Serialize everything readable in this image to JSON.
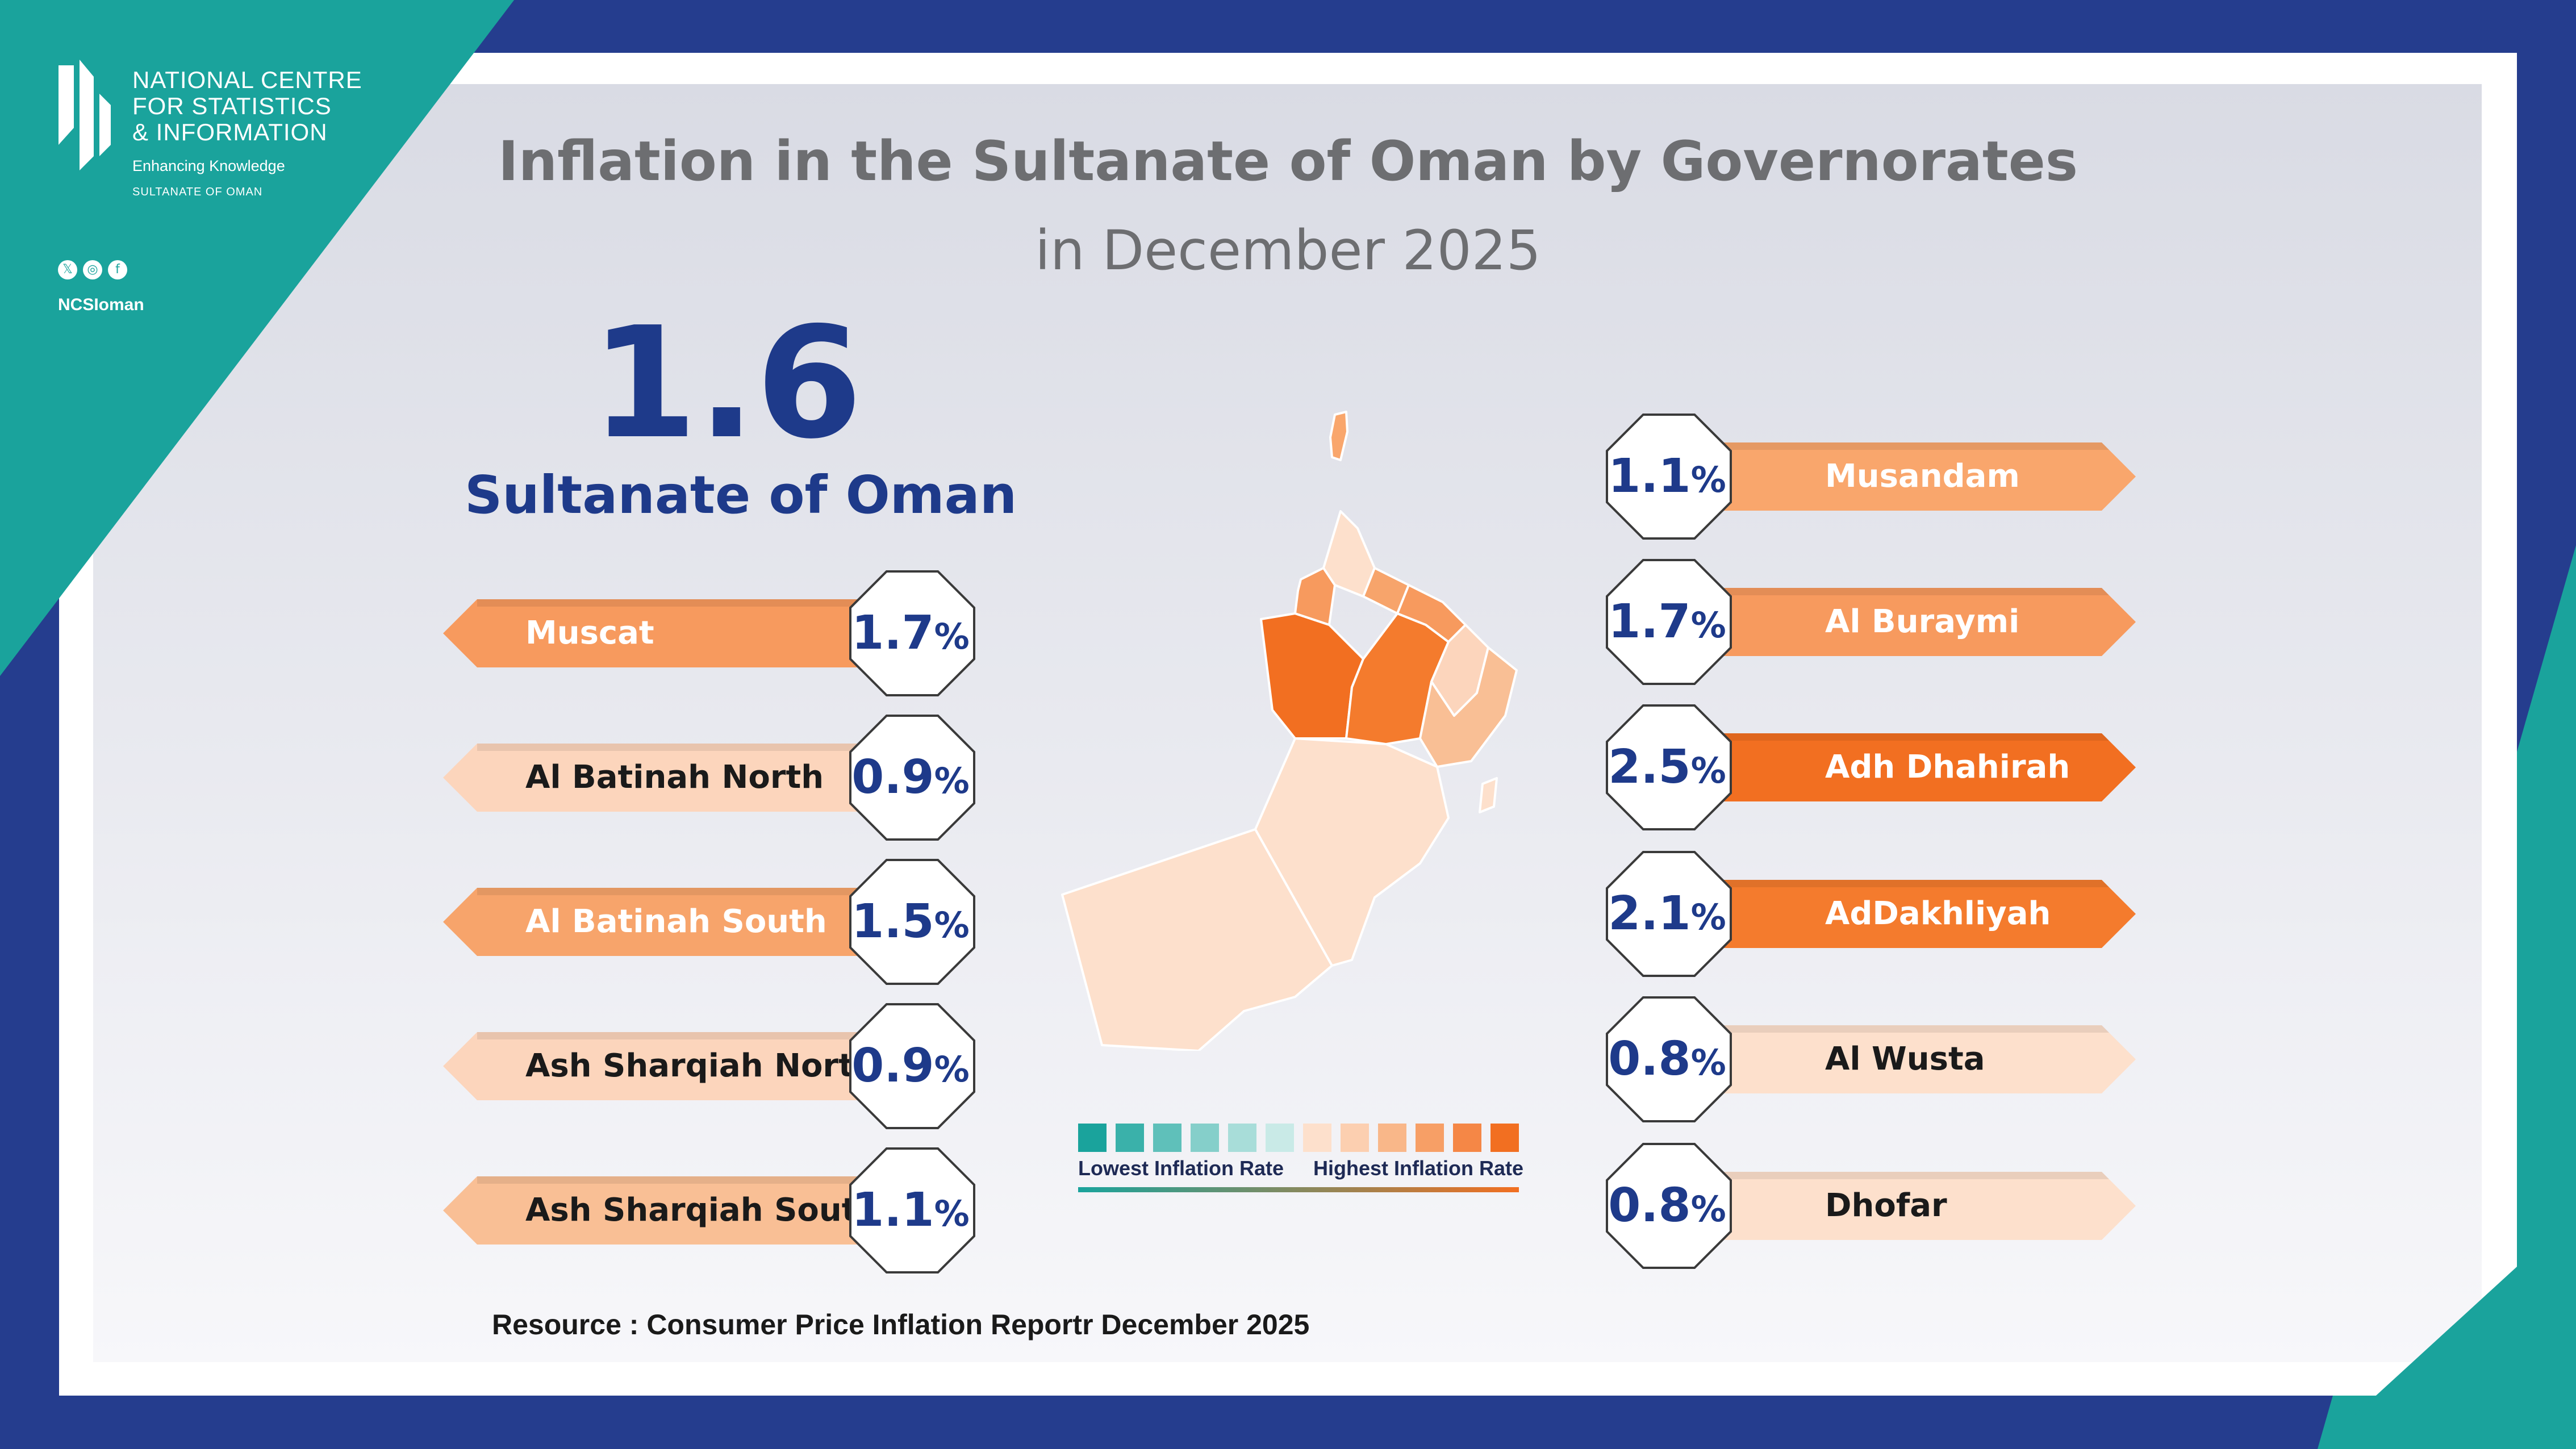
{
  "logo": {
    "org_lines": [
      "NATIONAL CENTRE",
      "FOR STATISTICS",
      "& INFORMATION"
    ],
    "tagline": "Enhancing Knowledge",
    "country": "SULTANATE OF OMAN"
  },
  "social": {
    "icons": [
      "x-icon",
      "instagram-icon",
      "facebook-icon"
    ],
    "handle": "NCSIoman"
  },
  "title": "Inflation in the Sultanate of Oman by Governorates",
  "subtitle": "in December 2025",
  "national": {
    "value": "1.6",
    "label": "Sultanate of Oman"
  },
  "chart_data": {
    "type": "table",
    "title": "Inflation in the Sultanate of Oman by Governorates in December 2025",
    "unit": "%",
    "national": {
      "name": "Sultanate of Oman",
      "value": 1.6
    },
    "left_column": [
      {
        "name": "Muscat",
        "value": 1.7,
        "display": "1.7",
        "color": "#f79a5e"
      },
      {
        "name": "Al  Batinah North",
        "value": 0.9,
        "display": "0.9",
        "color": "#fcd5bc"
      },
      {
        "name": "Al Batinah South",
        "value": 1.5,
        "display": "1.5",
        "color": "#f7a46b"
      },
      {
        "name": "Ash Sharqiah  North",
        "value": 0.9,
        "display": "0.9",
        "color": "#fcd5bc"
      },
      {
        "name": "Ash Sharqiah  South",
        "value": 1.1,
        "display": "1.1",
        "color": "#f9bf95"
      }
    ],
    "right_column": [
      {
        "name": "Musandam",
        "value": 1.1,
        "display": "1.1",
        "color": "#f9a66c"
      },
      {
        "name": "Al Buraymi",
        "value": 1.7,
        "display": "1.7",
        "color": "#f79a5e"
      },
      {
        "name": "Adh Dhahirah",
        "value": 2.5,
        "display": "2.5",
        "color": "#f26f21"
      },
      {
        "name": "AdDakhliyah",
        "value": 2.1,
        "display": "2.1",
        "color": "#f47b2d"
      },
      {
        "name": "Al Wusta",
        "value": 0.8,
        "display": "0.8",
        "color": "#fde0cc"
      },
      {
        "name": "Dhofar",
        "value": 0.8,
        "display": "0.8",
        "color": "#fde0cc"
      }
    ],
    "legend": {
      "low_label": "Lowest Inflation Rate",
      "high_label": "Highest Inflation Rate",
      "scale_colors": [
        "#1aa39c",
        "#3ab1aa",
        "#5fc0ba",
        "#85cfca",
        "#a8ddd9",
        "#c9eae7",
        "#fde0cc",
        "#fccfb0",
        "#f9b789",
        "#f79f66",
        "#f58746",
        "#f26f21"
      ]
    }
  },
  "source": "Resource : Consumer Price Inflation Reportr December 2025"
}
